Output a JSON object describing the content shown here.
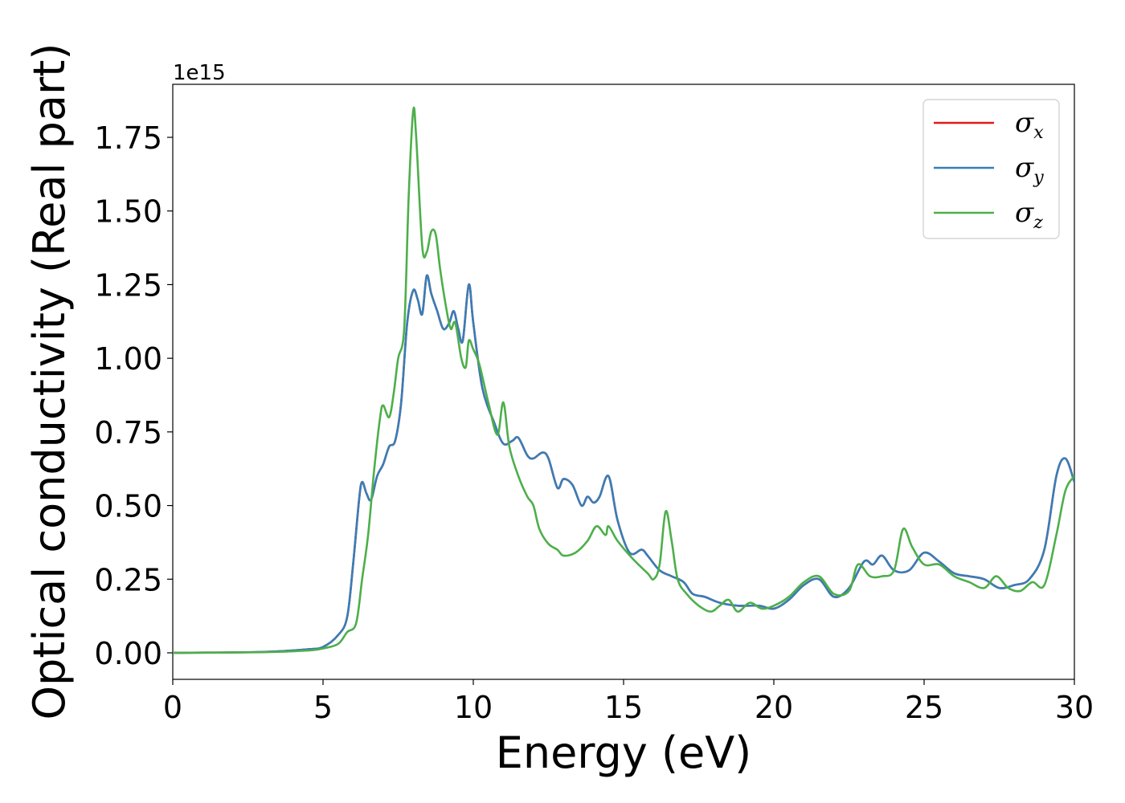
{
  "chart_data": {
    "type": "line",
    "xlabel": "Energy (eV)",
    "ylabel": "Optical conductivity (Real part)",
    "y_offset_label": "1e15",
    "xlim": [
      0,
      30
    ],
    "ylim": [
      -0.09,
      1.93
    ],
    "x_ticks": [
      0,
      5,
      10,
      15,
      20,
      25,
      30
    ],
    "x_tick_labels": [
      "0",
      "5",
      "10",
      "15",
      "20",
      "25",
      "30"
    ],
    "y_ticks": [
      0.0,
      0.25,
      0.5,
      0.75,
      1.0,
      1.25,
      1.5,
      1.75
    ],
    "y_tick_labels": [
      "0.00",
      "0.25",
      "0.50",
      "0.75",
      "1.00",
      "1.25",
      "1.50",
      "1.75"
    ],
    "grid": false,
    "legend_position": "top-right",
    "series": [
      {
        "name": "σ",
        "subscript": "x",
        "color": "#e41a1c",
        "points": [
          [
            0,
            0
          ],
          [
            3,
            0.003
          ],
          [
            4.5,
            0.012
          ],
          [
            5,
            0.02
          ],
          [
            5.5,
            0.06
          ],
          [
            5.8,
            0.12
          ],
          [
            6.0,
            0.3
          ],
          [
            6.2,
            0.52
          ],
          [
            6.3,
            0.58
          ],
          [
            6.45,
            0.54
          ],
          [
            6.6,
            0.52
          ],
          [
            6.8,
            0.6
          ],
          [
            7.0,
            0.64
          ],
          [
            7.2,
            0.7
          ],
          [
            7.4,
            0.72
          ],
          [
            7.6,
            0.85
          ],
          [
            7.8,
            1.12
          ],
          [
            8.0,
            1.23
          ],
          [
            8.15,
            1.2
          ],
          [
            8.3,
            1.15
          ],
          [
            8.45,
            1.28
          ],
          [
            8.6,
            1.22
          ],
          [
            8.8,
            1.16
          ],
          [
            9.0,
            1.1
          ],
          [
            9.2,
            1.12
          ],
          [
            9.35,
            1.16
          ],
          [
            9.5,
            1.1
          ],
          [
            9.65,
            1.06
          ],
          [
            9.85,
            1.25
          ],
          [
            10.0,
            1.12
          ],
          [
            10.3,
            0.9
          ],
          [
            10.7,
            0.78
          ],
          [
            11.0,
            0.71
          ],
          [
            11.3,
            0.72
          ],
          [
            11.5,
            0.73
          ],
          [
            11.8,
            0.67
          ],
          [
            12.0,
            0.66
          ],
          [
            12.3,
            0.68
          ],
          [
            12.5,
            0.66
          ],
          [
            12.8,
            0.56
          ],
          [
            13.0,
            0.59
          ],
          [
            13.3,
            0.57
          ],
          [
            13.6,
            0.5
          ],
          [
            13.8,
            0.53
          ],
          [
            14.0,
            0.51
          ],
          [
            14.2,
            0.53
          ],
          [
            14.5,
            0.6
          ],
          [
            14.8,
            0.45
          ],
          [
            15.2,
            0.34
          ],
          [
            15.6,
            0.35
          ],
          [
            15.8,
            0.33
          ],
          [
            16.2,
            0.28
          ],
          [
            16.6,
            0.26
          ],
          [
            17.0,
            0.24
          ],
          [
            17.3,
            0.2
          ],
          [
            17.7,
            0.19
          ],
          [
            18.2,
            0.17
          ],
          [
            18.8,
            0.16
          ],
          [
            19.5,
            0.16
          ],
          [
            20.0,
            0.15
          ],
          [
            20.5,
            0.18
          ],
          [
            21.0,
            0.23
          ],
          [
            21.5,
            0.25
          ],
          [
            22.0,
            0.19
          ],
          [
            22.5,
            0.22
          ],
          [
            23.0,
            0.31
          ],
          [
            23.3,
            0.3
          ],
          [
            23.6,
            0.33
          ],
          [
            24.0,
            0.28
          ],
          [
            24.5,
            0.28
          ],
          [
            25.0,
            0.34
          ],
          [
            25.5,
            0.31
          ],
          [
            26.0,
            0.27
          ],
          [
            26.5,
            0.26
          ],
          [
            27.0,
            0.25
          ],
          [
            27.5,
            0.22
          ],
          [
            28.0,
            0.23
          ],
          [
            28.5,
            0.25
          ],
          [
            29.0,
            0.35
          ],
          [
            29.4,
            0.6
          ],
          [
            29.7,
            0.66
          ],
          [
            30.0,
            0.58
          ]
        ]
      },
      {
        "name": "σ",
        "subscript": "y",
        "color": "#377eb8",
        "points": [
          [
            0,
            0
          ],
          [
            3,
            0.003
          ],
          [
            4.5,
            0.012
          ],
          [
            5,
            0.02
          ],
          [
            5.5,
            0.06
          ],
          [
            5.8,
            0.12
          ],
          [
            6.0,
            0.3
          ],
          [
            6.2,
            0.52
          ],
          [
            6.3,
            0.58
          ],
          [
            6.45,
            0.54
          ],
          [
            6.6,
            0.52
          ],
          [
            6.8,
            0.6
          ],
          [
            7.0,
            0.64
          ],
          [
            7.2,
            0.7
          ],
          [
            7.4,
            0.72
          ],
          [
            7.6,
            0.85
          ],
          [
            7.8,
            1.12
          ],
          [
            8.0,
            1.23
          ],
          [
            8.15,
            1.2
          ],
          [
            8.3,
            1.15
          ],
          [
            8.45,
            1.28
          ],
          [
            8.6,
            1.22
          ],
          [
            8.8,
            1.16
          ],
          [
            9.0,
            1.1
          ],
          [
            9.2,
            1.12
          ],
          [
            9.35,
            1.16
          ],
          [
            9.5,
            1.1
          ],
          [
            9.65,
            1.06
          ],
          [
            9.85,
            1.25
          ],
          [
            10.0,
            1.12
          ],
          [
            10.3,
            0.9
          ],
          [
            10.7,
            0.78
          ],
          [
            11.0,
            0.71
          ],
          [
            11.3,
            0.72
          ],
          [
            11.5,
            0.73
          ],
          [
            11.8,
            0.67
          ],
          [
            12.0,
            0.66
          ],
          [
            12.3,
            0.68
          ],
          [
            12.5,
            0.66
          ],
          [
            12.8,
            0.56
          ],
          [
            13.0,
            0.59
          ],
          [
            13.3,
            0.57
          ],
          [
            13.6,
            0.5
          ],
          [
            13.8,
            0.53
          ],
          [
            14.0,
            0.51
          ],
          [
            14.2,
            0.53
          ],
          [
            14.5,
            0.6
          ],
          [
            14.8,
            0.45
          ],
          [
            15.2,
            0.34
          ],
          [
            15.6,
            0.35
          ],
          [
            15.8,
            0.33
          ],
          [
            16.2,
            0.28
          ],
          [
            16.6,
            0.26
          ],
          [
            17.0,
            0.24
          ],
          [
            17.3,
            0.2
          ],
          [
            17.7,
            0.19
          ],
          [
            18.2,
            0.17
          ],
          [
            18.8,
            0.16
          ],
          [
            19.5,
            0.16
          ],
          [
            20.0,
            0.15
          ],
          [
            20.5,
            0.18
          ],
          [
            21.0,
            0.23
          ],
          [
            21.5,
            0.25
          ],
          [
            22.0,
            0.19
          ],
          [
            22.5,
            0.22
          ],
          [
            23.0,
            0.31
          ],
          [
            23.3,
            0.3
          ],
          [
            23.6,
            0.33
          ],
          [
            24.0,
            0.28
          ],
          [
            24.5,
            0.28
          ],
          [
            25.0,
            0.34
          ],
          [
            25.5,
            0.31
          ],
          [
            26.0,
            0.27
          ],
          [
            26.5,
            0.26
          ],
          [
            27.0,
            0.25
          ],
          [
            27.5,
            0.22
          ],
          [
            28.0,
            0.23
          ],
          [
            28.5,
            0.25
          ],
          [
            29.0,
            0.35
          ],
          [
            29.4,
            0.6
          ],
          [
            29.7,
            0.66
          ],
          [
            30.0,
            0.58
          ]
        ]
      },
      {
        "name": "σ",
        "subscript": "z",
        "color": "#4daf4a",
        "points": [
          [
            0,
            0
          ],
          [
            3,
            0.002
          ],
          [
            4.5,
            0.008
          ],
          [
            5,
            0.015
          ],
          [
            5.5,
            0.03
          ],
          [
            5.8,
            0.07
          ],
          [
            6.1,
            0.1
          ],
          [
            6.3,
            0.25
          ],
          [
            6.5,
            0.4
          ],
          [
            6.7,
            0.62
          ],
          [
            6.9,
            0.8
          ],
          [
            7.0,
            0.84
          ],
          [
            7.2,
            0.8
          ],
          [
            7.35,
            0.88
          ],
          [
            7.5,
            1.0
          ],
          [
            7.7,
            1.1
          ],
          [
            7.85,
            1.55
          ],
          [
            8.0,
            1.84
          ],
          [
            8.1,
            1.75
          ],
          [
            8.3,
            1.38
          ],
          [
            8.45,
            1.36
          ],
          [
            8.6,
            1.43
          ],
          [
            8.75,
            1.42
          ],
          [
            8.9,
            1.3
          ],
          [
            9.1,
            1.17
          ],
          [
            9.25,
            1.1
          ],
          [
            9.4,
            1.12
          ],
          [
            9.6,
            1.0
          ],
          [
            9.75,
            0.97
          ],
          [
            9.85,
            1.06
          ],
          [
            10.0,
            1.03
          ],
          [
            10.2,
            0.98
          ],
          [
            10.5,
            0.85
          ],
          [
            10.8,
            0.74
          ],
          [
            11.0,
            0.85
          ],
          [
            11.2,
            0.7
          ],
          [
            11.5,
            0.6
          ],
          [
            11.8,
            0.53
          ],
          [
            12.0,
            0.5
          ],
          [
            12.2,
            0.42
          ],
          [
            12.5,
            0.37
          ],
          [
            12.8,
            0.35
          ],
          [
            13.0,
            0.33
          ],
          [
            13.4,
            0.34
          ],
          [
            13.8,
            0.38
          ],
          [
            14.1,
            0.43
          ],
          [
            14.4,
            0.4
          ],
          [
            14.5,
            0.43
          ],
          [
            14.8,
            0.38
          ],
          [
            15.3,
            0.32
          ],
          [
            15.8,
            0.27
          ],
          [
            16.0,
            0.25
          ],
          [
            16.2,
            0.3
          ],
          [
            16.4,
            0.48
          ],
          [
            16.6,
            0.38
          ],
          [
            16.8,
            0.25
          ],
          [
            17.1,
            0.2
          ],
          [
            17.5,
            0.16
          ],
          [
            17.9,
            0.14
          ],
          [
            18.2,
            0.16
          ],
          [
            18.5,
            0.18
          ],
          [
            18.8,
            0.14
          ],
          [
            19.2,
            0.17
          ],
          [
            19.6,
            0.15
          ],
          [
            20.0,
            0.16
          ],
          [
            20.5,
            0.19
          ],
          [
            21.0,
            0.24
          ],
          [
            21.5,
            0.26
          ],
          [
            22.0,
            0.2
          ],
          [
            22.5,
            0.21
          ],
          [
            22.8,
            0.3
          ],
          [
            23.2,
            0.26
          ],
          [
            23.6,
            0.26
          ],
          [
            24.0,
            0.28
          ],
          [
            24.3,
            0.42
          ],
          [
            24.6,
            0.36
          ],
          [
            25.0,
            0.3
          ],
          [
            25.5,
            0.3
          ],
          [
            26.0,
            0.26
          ],
          [
            26.5,
            0.24
          ],
          [
            27.0,
            0.22
          ],
          [
            27.4,
            0.26
          ],
          [
            27.8,
            0.22
          ],
          [
            28.2,
            0.21
          ],
          [
            28.6,
            0.24
          ],
          [
            29.0,
            0.23
          ],
          [
            29.4,
            0.4
          ],
          [
            29.7,
            0.55
          ],
          [
            30.0,
            0.6
          ]
        ]
      }
    ]
  }
}
